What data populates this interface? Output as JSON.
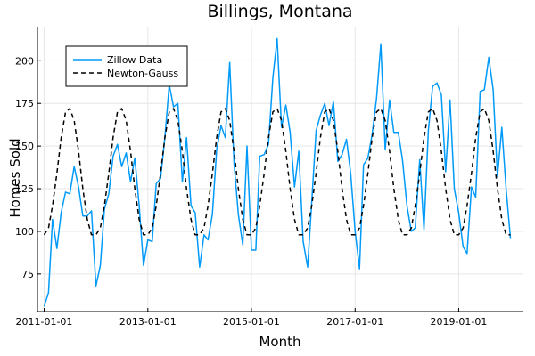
{
  "chart_data": {
    "type": "line",
    "title": "Billings, Montana",
    "xlabel": "Month",
    "ylabel": "Homes Sold",
    "xlim": [
      "2010-11-15",
      "2020-04-01"
    ],
    "ylim": [
      53,
      220
    ],
    "x_ticks": [
      "2011-01-01",
      "2013-01-01",
      "2015-01-01",
      "2017-01-01",
      "2019-01-01"
    ],
    "y_ticks": [
      75,
      100,
      125,
      150,
      175,
      200
    ],
    "grid": true,
    "legend_position": "top-left",
    "series": [
      {
        "name": "Zillow Data",
        "color": "#009af9",
        "style": "solid",
        "start": "2011-01-01",
        "frequency": "monthly",
        "values": [
          56,
          64,
          107,
          90,
          111,
          123,
          122,
          138,
          126,
          109,
          109,
          112,
          68,
          80,
          113,
          122,
          144,
          151,
          138,
          146,
          129,
          143,
          115,
          80,
          95,
          94,
          128,
          131,
          155,
          186,
          173,
          175,
          129,
          155,
          115,
          111,
          79,
          98,
          95,
          110,
          148,
          162,
          155,
          199,
          140,
          110,
          92,
          150,
          89,
          89,
          144,
          145,
          151,
          190,
          213,
          161,
          174,
          158,
          126,
          147,
          94,
          79,
          117,
          159,
          168,
          175,
          162,
          176,
          141,
          145,
          154,
          134,
          100,
          78,
          139,
          143,
          157,
          178,
          210,
          148,
          177,
          158,
          158,
          142,
          115,
          100,
          102,
          142,
          101,
          159,
          185,
          187,
          180,
          135,
          177,
          125,
          111,
          91,
          87,
          126,
          120,
          182,
          183,
          202,
          183,
          132,
          161,
          125,
          96
        ]
      },
      {
        "name": "Newton-Gauss",
        "color": "#000000",
        "style": "dashed",
        "start": "2011-01-01",
        "frequency": "monthly",
        "values": [
          98,
          102,
          115,
          134,
          155,
          170,
          172,
          165,
          147,
          125,
          107,
          98,
          98,
          102,
          115,
          134,
          155,
          170,
          172,
          165,
          147,
          125,
          107,
          98,
          98,
          102,
          115,
          134,
          155,
          170,
          172,
          165,
          147,
          125,
          107,
          98,
          98,
          102,
          115,
          134,
          155,
          170,
          172,
          165,
          147,
          125,
          107,
          98,
          98,
          102,
          115,
          134,
          155,
          170,
          172,
          165,
          147,
          125,
          107,
          98,
          98,
          102,
          115,
          134,
          155,
          170,
          172,
          165,
          147,
          125,
          107,
          98,
          98,
          102,
          115,
          134,
          155,
          170,
          172,
          165,
          147,
          125,
          107,
          98,
          98,
          102,
          115,
          134,
          155,
          170,
          172,
          165,
          147,
          125,
          107,
          98,
          98,
          102,
          115,
          134,
          155,
          170,
          172,
          165,
          147,
          125,
          107,
          98,
          98
        ]
      }
    ]
  }
}
